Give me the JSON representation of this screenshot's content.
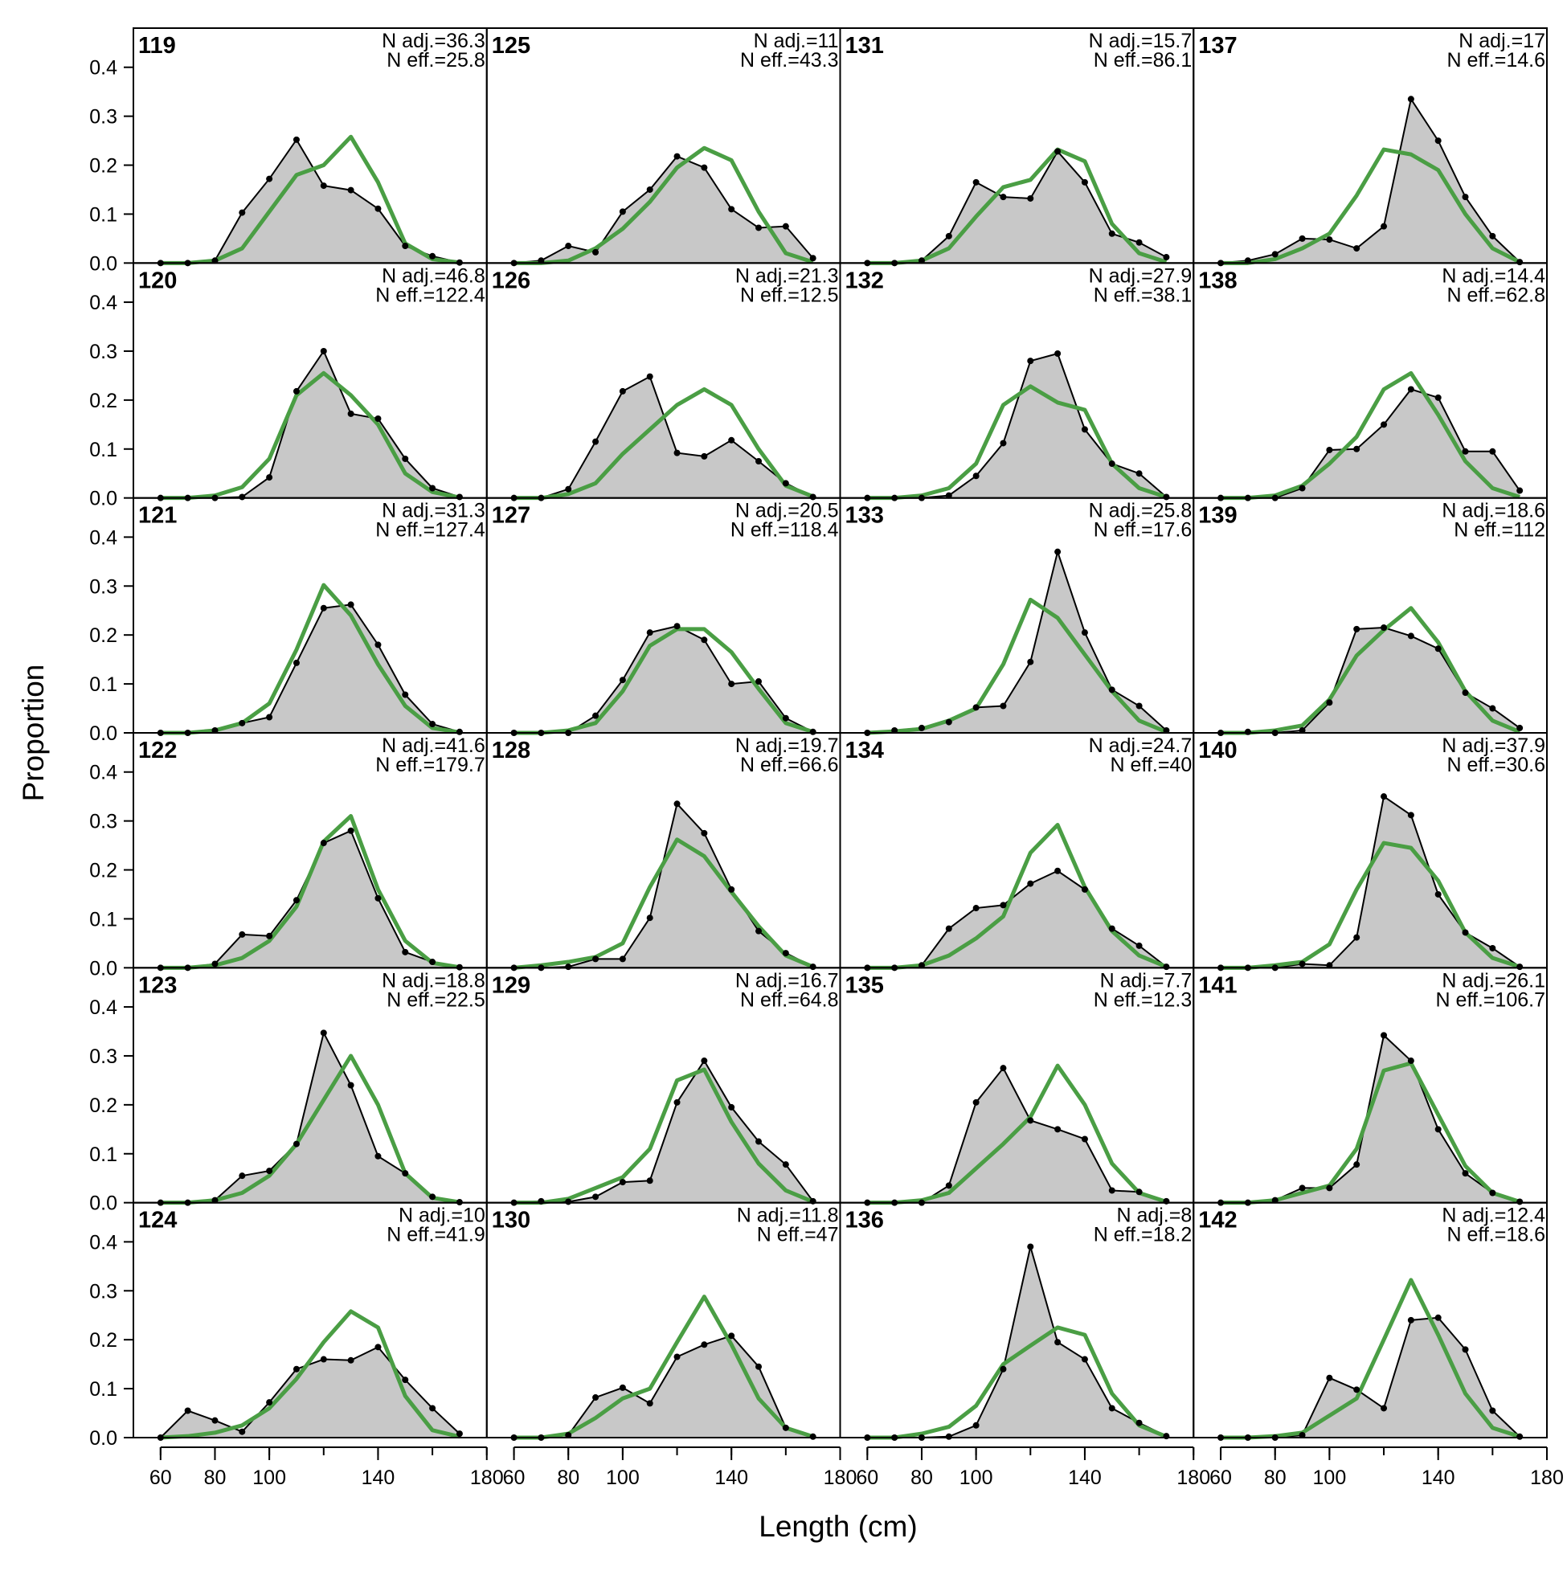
{
  "chart_data": {
    "type": "area",
    "xlabel": "Length (cm)",
    "ylabel": "Proportion",
    "xlim": [
      50,
      180
    ],
    "ylim": [
      0,
      0.48
    ],
    "x_ticks": [
      60,
      80,
      100,
      140,
      180
    ],
    "x_tick_labels": [
      "60",
      "80",
      "100",
      "140",
      "180"
    ],
    "y_ticks": [
      0,
      0.1,
      0.2,
      0.3,
      0.4
    ],
    "y_tick_labels": [
      "0.0",
      "0.1",
      "0.2",
      "0.3",
      "0.4"
    ],
    "x": [
      60,
      70,
      80,
      90,
      100,
      110,
      120,
      130,
      140,
      150,
      160,
      170
    ],
    "layout": {
      "rows": 6,
      "cols": 4,
      "order": "column-major"
    },
    "colors": {
      "observed_fill": "#c8c8c8",
      "observed_line": "#000000",
      "expected_line": "#4a9e44",
      "zero_line": "#b4b4b4"
    },
    "panels": [
      {
        "label": "119",
        "n_adj": "N adj.=36.3",
        "n_eff": "N eff.=25.8",
        "observed": [
          0,
          0,
          0.005,
          0.103,
          0.172,
          0.252,
          0.158,
          0.149,
          0.111,
          0.035,
          0.014,
          0.001
        ],
        "expected": [
          0,
          0,
          0.005,
          0.03,
          0.105,
          0.18,
          0.2,
          0.258,
          0.165,
          0.04,
          0.008,
          0.001
        ]
      },
      {
        "label": "120",
        "n_adj": "N adj.=46.8",
        "n_eff": "N eff.=122.4",
        "observed": [
          0,
          0,
          0,
          0.002,
          0.042,
          0.218,
          0.3,
          0.172,
          0.162,
          0.08,
          0.02,
          0.002
        ],
        "expected": [
          0,
          0,
          0.005,
          0.022,
          0.08,
          0.21,
          0.255,
          0.21,
          0.15,
          0.05,
          0.012,
          0.001
        ]
      },
      {
        "label": "121",
        "n_adj": "N adj.=31.3",
        "n_eff": "N eff.=127.4",
        "observed": [
          0,
          0,
          0.005,
          0.02,
          0.032,
          0.143,
          0.255,
          0.262,
          0.18,
          0.078,
          0.018,
          0.002
        ],
        "expected": [
          0,
          0,
          0.005,
          0.02,
          0.06,
          0.17,
          0.302,
          0.24,
          0.14,
          0.055,
          0.01,
          0.001
        ]
      },
      {
        "label": "122",
        "n_adj": "N adj.=41.6",
        "n_eff": "N eff.=179.7",
        "observed": [
          0,
          0,
          0.008,
          0.068,
          0.065,
          0.138,
          0.255,
          0.28,
          0.142,
          0.032,
          0.012,
          0.001
        ],
        "expected": [
          0,
          0,
          0.005,
          0.02,
          0.055,
          0.125,
          0.258,
          0.31,
          0.16,
          0.055,
          0.01,
          0.001
        ]
      },
      {
        "label": "123",
        "n_adj": "N adj.=18.8",
        "n_eff": "N eff.=22.5",
        "observed": [
          0,
          0,
          0.005,
          0.055,
          0.065,
          0.12,
          0.347,
          0.24,
          0.095,
          0.06,
          0.012,
          0.001
        ],
        "expected": [
          0,
          0,
          0.005,
          0.02,
          0.055,
          0.12,
          0.21,
          0.3,
          0.2,
          0.06,
          0.01,
          0.001
        ]
      },
      {
        "label": "124",
        "n_adj": "N adj.=10",
        "n_eff": "N eff.=41.9",
        "observed": [
          0,
          0.055,
          0.035,
          0.012,
          0.072,
          0.14,
          0.16,
          0.158,
          0.185,
          0.118,
          0.06,
          0.008
        ],
        "expected": [
          0,
          0.003,
          0.01,
          0.025,
          0.06,
          0.12,
          0.195,
          0.258,
          0.225,
          0.085,
          0.015,
          0.002
        ]
      },
      {
        "label": "125",
        "n_adj": "N adj.=11",
        "n_eff": "N eff.=43.3",
        "observed": [
          0,
          0.005,
          0.035,
          0.022,
          0.105,
          0.15,
          0.218,
          0.195,
          0.11,
          0.072,
          0.075,
          0.01
        ],
        "expected": [
          0,
          0,
          0.005,
          0.03,
          0.07,
          0.125,
          0.195,
          0.235,
          0.21,
          0.105,
          0.02,
          0.002
        ]
      },
      {
        "label": "126",
        "n_adj": "N adj.=21.3",
        "n_eff": "N eff.=12.5",
        "observed": [
          0,
          0,
          0.018,
          0.115,
          0.218,
          0.248,
          0.092,
          0.085,
          0.118,
          0.075,
          0.03,
          0.002
        ],
        "expected": [
          0,
          0,
          0.008,
          0.03,
          0.09,
          0.14,
          0.19,
          0.222,
          0.19,
          0.1,
          0.025,
          0.003
        ]
      },
      {
        "label": "127",
        "n_adj": "N adj.=20.5",
        "n_eff": "N eff.=118.4",
        "observed": [
          0,
          0,
          0,
          0.035,
          0.108,
          0.205,
          0.218,
          0.19,
          0.1,
          0.105,
          0.03,
          0.002
        ],
        "expected": [
          0,
          0,
          0.005,
          0.02,
          0.085,
          0.178,
          0.212,
          0.212,
          0.165,
          0.09,
          0.02,
          0.002
        ]
      },
      {
        "label": "128",
        "n_adj": "N adj.=19.7",
        "n_eff": "N eff.=66.6",
        "observed": [
          0,
          0,
          0.002,
          0.018,
          0.018,
          0.102,
          0.335,
          0.275,
          0.16,
          0.075,
          0.03,
          0.002
        ],
        "expected": [
          0,
          0.005,
          0.012,
          0.022,
          0.05,
          0.165,
          0.262,
          0.228,
          0.155,
          0.085,
          0.025,
          0.002
        ]
      },
      {
        "label": "129",
        "n_adj": "N adj.=16.7",
        "n_eff": "N eff.=64.8",
        "observed": [
          0,
          0.003,
          0.002,
          0.012,
          0.042,
          0.045,
          0.205,
          0.29,
          0.195,
          0.125,
          0.078,
          0.003
        ],
        "expected": [
          0,
          0,
          0.008,
          0.03,
          0.052,
          0.11,
          0.25,
          0.272,
          0.165,
          0.08,
          0.025,
          0.002
        ]
      },
      {
        "label": "130",
        "n_adj": "N adj.=11.8",
        "n_eff": "N eff.=47",
        "observed": [
          0,
          0,
          0.005,
          0.082,
          0.102,
          0.07,
          0.165,
          0.19,
          0.208,
          0.145,
          0.02,
          0.002
        ],
        "expected": [
          0,
          0,
          0.008,
          0.04,
          0.08,
          0.1,
          0.195,
          0.288,
          0.19,
          0.08,
          0.02,
          0.002
        ]
      },
      {
        "label": "131",
        "n_adj": "N adj.=15.7",
        "n_eff": "N eff.=86.1",
        "observed": [
          0,
          0,
          0.005,
          0.055,
          0.165,
          0.135,
          0.132,
          0.228,
          0.165,
          0.06,
          0.042,
          0.012
        ],
        "expected": [
          0,
          0,
          0.005,
          0.03,
          0.095,
          0.155,
          0.17,
          0.232,
          0.208,
          0.08,
          0.02,
          0.002
        ]
      },
      {
        "label": "132",
        "n_adj": "N adj.=27.9",
        "n_eff": "N eff.=38.1",
        "observed": [
          0,
          0,
          0,
          0.005,
          0.045,
          0.112,
          0.28,
          0.295,
          0.14,
          0.07,
          0.05,
          0.002
        ],
        "expected": [
          0,
          0,
          0.005,
          0.02,
          0.07,
          0.19,
          0.228,
          0.195,
          0.18,
          0.07,
          0.02,
          0.002
        ]
      },
      {
        "label": "133",
        "n_adj": "N adj.=25.8",
        "n_eff": "N eff.=17.6",
        "observed": [
          0,
          0.005,
          0.01,
          0.022,
          0.052,
          0.055,
          0.145,
          0.37,
          0.205,
          0.088,
          0.055,
          0.005
        ],
        "expected": [
          0,
          0.003,
          0.008,
          0.025,
          0.05,
          0.14,
          0.272,
          0.235,
          0.16,
          0.085,
          0.025,
          0.002
        ]
      },
      {
        "label": "134",
        "n_adj": "N adj.=24.7",
        "n_eff": "N eff.=40",
        "observed": [
          0,
          0,
          0.005,
          0.08,
          0.122,
          0.128,
          0.172,
          0.198,
          0.16,
          0.08,
          0.045,
          0.002
        ],
        "expected": [
          0,
          0,
          0.005,
          0.025,
          0.06,
          0.105,
          0.235,
          0.292,
          0.165,
          0.075,
          0.025,
          0.002
        ]
      },
      {
        "label": "135",
        "n_adj": "N adj.=7.7",
        "n_eff": "N eff.=12.3",
        "observed": [
          0,
          0,
          0,
          0.035,
          0.205,
          0.275,
          0.168,
          0.15,
          0.13,
          0.025,
          0.022,
          0.003
        ],
        "expected": [
          0,
          0,
          0.005,
          0.02,
          0.07,
          0.12,
          0.175,
          0.28,
          0.2,
          0.08,
          0.02,
          0.002
        ]
      },
      {
        "label": "136",
        "n_adj": "N adj.=8",
        "n_eff": "N eff.=18.2",
        "observed": [
          0,
          0,
          0,
          0.002,
          0.025,
          0.14,
          0.39,
          0.195,
          0.16,
          0.06,
          0.03,
          0.003
        ],
        "expected": [
          0,
          0,
          0.008,
          0.022,
          0.065,
          0.15,
          0.188,
          0.225,
          0.21,
          0.09,
          0.025,
          0.002
        ]
      },
      {
        "label": "137",
        "n_adj": "N adj.=17",
        "n_eff": "N eff.=14.6",
        "observed": [
          0,
          0.005,
          0.018,
          0.05,
          0.048,
          0.03,
          0.075,
          0.335,
          0.25,
          0.135,
          0.055,
          0.002
        ],
        "expected": [
          0,
          0,
          0.008,
          0.03,
          0.06,
          0.138,
          0.232,
          0.222,
          0.19,
          0.1,
          0.03,
          0.002
        ]
      },
      {
        "label": "138",
        "n_adj": "N adj.=14.4",
        "n_eff": "N eff.=62.8",
        "observed": [
          0,
          0,
          0,
          0.02,
          0.098,
          0.1,
          0.15,
          0.222,
          0.205,
          0.095,
          0.095,
          0.015
        ],
        "expected": [
          0,
          0,
          0.005,
          0.025,
          0.07,
          0.125,
          0.222,
          0.255,
          0.17,
          0.075,
          0.02,
          0.002
        ]
      },
      {
        "label": "139",
        "n_adj": "N adj.=18.6",
        "n_eff": "N eff.=112",
        "observed": [
          0,
          0.002,
          0,
          0.005,
          0.062,
          0.212,
          0.215,
          0.198,
          0.172,
          0.082,
          0.05,
          0.01
        ],
        "expected": [
          0,
          0,
          0.005,
          0.015,
          0.068,
          0.158,
          0.21,
          0.255,
          0.185,
          0.085,
          0.025,
          0.002
        ]
      },
      {
        "label": "140",
        "n_adj": "N adj.=37.9",
        "n_eff": "N eff.=30.6",
        "observed": [
          0,
          0,
          0,
          0.008,
          0.005,
          0.062,
          0.35,
          0.312,
          0.15,
          0.072,
          0.04,
          0.002
        ],
        "expected": [
          0,
          0,
          0.005,
          0.012,
          0.048,
          0.16,
          0.255,
          0.245,
          0.178,
          0.072,
          0.02,
          0.002
        ]
      },
      {
        "label": "141",
        "n_adj": "N adj.=26.1",
        "n_eff": "N eff.=106.7",
        "observed": [
          0,
          0,
          0.005,
          0.03,
          0.03,
          0.078,
          0.342,
          0.29,
          0.15,
          0.06,
          0.02,
          0.002
        ],
        "expected": [
          0,
          0,
          0.005,
          0.02,
          0.035,
          0.11,
          0.27,
          0.285,
          0.18,
          0.075,
          0.02,
          0.002
        ]
      },
      {
        "label": "142",
        "n_adj": "N adj.=12.4",
        "n_eff": "N eff.=18.6",
        "observed": [
          0,
          0,
          0,
          0.005,
          0.122,
          0.098,
          0.06,
          0.24,
          0.245,
          0.18,
          0.055,
          0.002
        ],
        "expected": [
          0,
          0,
          0.003,
          0.01,
          0.045,
          0.08,
          0.2,
          0.322,
          0.21,
          0.09,
          0.02,
          0.002
        ]
      }
    ]
  }
}
